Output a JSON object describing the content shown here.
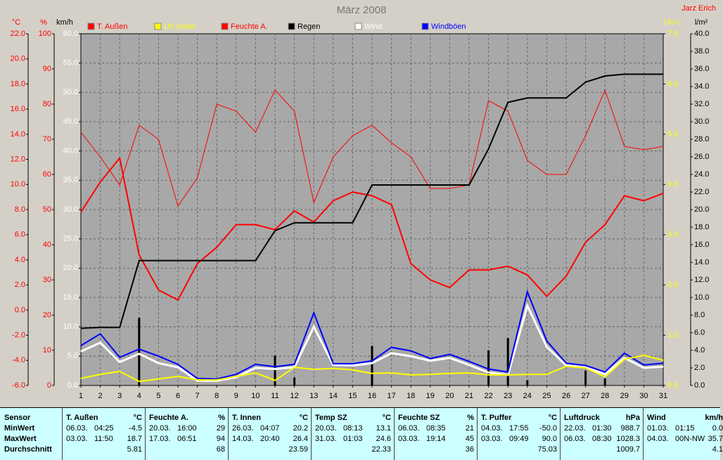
{
  "chart_data": {
    "type": "line",
    "title": "März 2008",
    "author": "Jarz Erich",
    "x": [
      1,
      2,
      3,
      4,
      5,
      6,
      7,
      8,
      9,
      10,
      11,
      12,
      13,
      14,
      15,
      16,
      17,
      18,
      19,
      20,
      21,
      22,
      23,
      24,
      25,
      26,
      27,
      28,
      29,
      30,
      31
    ],
    "xlim": [
      1,
      31
    ],
    "xticks": [
      1,
      2,
      3,
      4,
      5,
      6,
      7,
      8,
      9,
      10,
      11,
      12,
      13,
      14,
      15,
      16,
      17,
      18,
      19,
      20,
      21,
      22,
      23,
      24,
      25,
      26,
      27,
      28,
      29,
      30,
      31
    ],
    "grid": true,
    "grid_axis": 2,
    "background": "#a8a8a8",
    "axes": [
      {
        "label": "°C",
        "side": "left",
        "color": "#ff0000",
        "lim": [
          -6,
          22
        ],
        "ticks": [
          {
            "value": -6,
            "label": "-6.0"
          },
          {
            "value": -4,
            "label": "-4.0"
          },
          {
            "value": -2,
            "label": "-2.0"
          },
          {
            "value": 0,
            "label": "0.0"
          },
          {
            "value": 2,
            "label": "2.0"
          },
          {
            "value": 4,
            "label": "4.0"
          },
          {
            "value": 6,
            "label": "6.0"
          },
          {
            "value": 8,
            "label": "8.0"
          },
          {
            "value": 10,
            "label": "10.0"
          },
          {
            "value": 12,
            "label": "12.0"
          },
          {
            "value": 14,
            "label": "14.0"
          },
          {
            "value": 16,
            "label": "16.0"
          },
          {
            "value": 18,
            "label": "18.0"
          },
          {
            "value": 20,
            "label": "20.0"
          },
          {
            "value": 22,
            "label": "22.0"
          }
        ]
      },
      {
        "label": "%",
        "side": "left",
        "color": "#ff0000",
        "lim": [
          0,
          100
        ],
        "ticks": [
          0,
          10,
          20,
          30,
          40,
          50,
          60,
          70,
          80,
          90,
          100
        ]
      },
      {
        "label": "km/h",
        "side": "left",
        "color": "#ffffff",
        "lim": [
          0,
          60
        ],
        "ticks": [
          {
            "value": 0,
            "label": "0.0"
          },
          {
            "value": 5,
            "label": "5.0"
          },
          {
            "value": 10,
            "label": "10.0"
          },
          {
            "value": 15,
            "label": "15.0"
          },
          {
            "value": 20,
            "label": "20.0"
          },
          {
            "value": 25,
            "label": "25.0"
          },
          {
            "value": 30,
            "label": "30.0"
          },
          {
            "value": 35,
            "label": "35.0"
          },
          {
            "value": 40,
            "label": "40.0"
          },
          {
            "value": 45,
            "label": "45.0"
          },
          {
            "value": 50,
            "label": "50.0"
          },
          {
            "value": 55,
            "label": "55.0"
          },
          {
            "value": 60,
            "label": "60.0"
          }
        ]
      },
      {
        "label": "UV-I",
        "side": "right",
        "color": "#ffff00",
        "lim": [
          0,
          7
        ],
        "ticks": [
          {
            "value": 0,
            "label": "0.0"
          },
          {
            "value": 1,
            "label": "1.0"
          },
          {
            "value": 2,
            "label": "2.0"
          },
          {
            "value": 3,
            "label": "3.0"
          },
          {
            "value": 4,
            "label": "4.0"
          },
          {
            "value": 5,
            "label": "5.0"
          },
          {
            "value": 6,
            "label": "6.0"
          },
          {
            "value": 7,
            "label": "7.0"
          }
        ]
      },
      {
        "label": "l/m²",
        "side": "right",
        "color": "#000000",
        "lim": [
          0,
          40
        ],
        "ticks": [
          {
            "value": 0,
            "label": "0.0"
          },
          {
            "value": 2,
            "label": "2.0"
          },
          {
            "value": 4,
            "label": "4.0"
          },
          {
            "value": 6,
            "label": "6.0"
          },
          {
            "value": 8,
            "label": "8.0"
          },
          {
            "value": 10,
            "label": "10.0"
          },
          {
            "value": 12,
            "label": "12.0"
          },
          {
            "value": 14,
            "label": "14.0"
          },
          {
            "value": 16,
            "label": "16.0"
          },
          {
            "value": 18,
            "label": "18.0"
          },
          {
            "value": 20,
            "label": "20.0"
          },
          {
            "value": 22,
            "label": "22.0"
          },
          {
            "value": 24,
            "label": "24.0"
          },
          {
            "value": 26,
            "label": "26.0"
          },
          {
            "value": 28,
            "label": "28.0"
          },
          {
            "value": 30,
            "label": "30.0"
          },
          {
            "value": 32,
            "label": "32.0"
          },
          {
            "value": 34,
            "label": "34.0"
          },
          {
            "value": 36,
            "label": "36.0"
          },
          {
            "value": 38,
            "label": "38.0"
          },
          {
            "value": 40,
            "label": "40.0"
          }
        ]
      }
    ],
    "series": [
      {
        "name": "T. Außen",
        "color": "#ff0000",
        "axis": 0,
        "line_width": 2,
        "values": [
          7.8,
          10.2,
          12.1,
          4.4,
          1.6,
          0.8,
          3.7,
          5.0,
          6.8,
          6.8,
          6.4,
          7.9,
          7.0,
          8.7,
          9.4,
          9.1,
          8.4,
          3.7,
          2.4,
          1.8,
          3.2,
          3.2,
          3.5,
          2.8,
          1.1,
          2.7,
          5.4,
          6.8,
          9.1,
          8.7,
          9.3
        ]
      },
      {
        "name": "UV Index",
        "color": "#ffff00",
        "axis": 3,
        "line_width": 2,
        "values": [
          0.14,
          0.22,
          0.28,
          0.08,
          0.13,
          0.18,
          0.11,
          0.11,
          0.18,
          0.25,
          0.1,
          0.36,
          0.32,
          0.34,
          0.31,
          0.24,
          0.25,
          0.21,
          0.22,
          0.24,
          0.25,
          0.21,
          0.21,
          0.22,
          0.22,
          0.38,
          0.35,
          0.17,
          0.52,
          0.6,
          0.5
        ]
      },
      {
        "name": "Feuchte A.",
        "color": "#ff0000",
        "axis": 1,
        "line_width": 1,
        "values": [
          72,
          65,
          57,
          74,
          70,
          51,
          59,
          80,
          78,
          72,
          84,
          78,
          52,
          65,
          71,
          74,
          69,
          65,
          56,
          56,
          57,
          81,
          78,
          64,
          60,
          60,
          71,
          84,
          68,
          67,
          68
        ]
      },
      {
        "name": "Regen",
        "color": "#000000",
        "axis": 4,
        "line_width": 2,
        "values": [
          6.5,
          6.6,
          6.6,
          14.2,
          14.2,
          14.2,
          14.2,
          14.2,
          14.2,
          14.2,
          17.6,
          18.5,
          18.5,
          18.5,
          18.5,
          22.8,
          22.8,
          22.8,
          22.8,
          22.8,
          22.8,
          26.9,
          32.2,
          32.7,
          32.7,
          32.7,
          34.5,
          35.2,
          35.4,
          35.4,
          35.4
        ]
      },
      {
        "name": "Wind",
        "color": "#ffffff",
        "axis": 2,
        "line_width": 3,
        "values": [
          5.8,
          7.3,
          4.0,
          5.4,
          3.8,
          3.1,
          0.8,
          0.8,
          1.4,
          3.0,
          2.8,
          3.1,
          10.0,
          3.5,
          3.4,
          3.8,
          5.5,
          5.0,
          4.2,
          4.7,
          3.5,
          2.2,
          1.8,
          13.6,
          6.6,
          3.4,
          3.1,
          1.9,
          4.7,
          3.0,
          3.2
        ]
      },
      {
        "name": "Windböen",
        "color": "#0000ff",
        "axis": 2,
        "line_width": 2,
        "values": [
          6.8,
          8.8,
          4.8,
          6.2,
          5.0,
          3.6,
          1.2,
          1.1,
          1.9,
          3.6,
          3.2,
          3.6,
          12.4,
          3.7,
          3.7,
          4.2,
          6.5,
          5.9,
          4.6,
          5.3,
          4.1,
          2.8,
          2.3,
          16.0,
          7.6,
          3.8,
          3.4,
          2.3,
          5.5,
          3.5,
          3.8
        ]
      },
      {
        "kind": "bar",
        "color": "#000000",
        "axis": 4,
        "values": [
          0,
          0,
          0,
          7.7,
          0,
          0,
          0,
          0,
          0,
          0,
          3.4,
          0.9,
          0,
          0,
          0,
          4.5,
          0,
          0,
          0,
          0,
          0,
          4.0,
          5.4,
          0.6,
          0,
          0,
          1.7,
          0.8,
          0,
          0,
          0
        ]
      }
    ]
  },
  "table": {
    "row_labels": [
      "Sensor",
      "MinWert",
      "MaxWert",
      "Durchschnitt"
    ],
    "columns": [
      {
        "name": "T. Außen",
        "unit": "°C",
        "min": [
          "06.03.",
          "04:25",
          "-4.5"
        ],
        "max": [
          "03.03.",
          "11:50",
          "18.7"
        ],
        "avg": "5.81"
      },
      {
        "name": "Feuchte A.",
        "unit": "%",
        "min": [
          "20.03.",
          "16:00",
          "29"
        ],
        "max": [
          "17.03.",
          "06:51",
          "94"
        ],
        "avg": "68"
      },
      {
        "name": "T. Innen",
        "unit": "°C",
        "min": [
          "26.03.",
          "04:07",
          "20.2"
        ],
        "max": [
          "14.03.",
          "20:40",
          "26.4"
        ],
        "avg": "23.59"
      },
      {
        "name": "Temp SZ",
        "unit": "°C",
        "min": [
          "20.03.",
          "08:13",
          "13.1"
        ],
        "max": [
          "31.03.",
          "01:03",
          "24.6"
        ],
        "avg": "22.33"
      },
      {
        "name": "Feuchte SZ",
        "unit": "%",
        "min": [
          "06.03.",
          "08:35",
          "21"
        ],
        "max": [
          "03.03.",
          "19:14",
          "45"
        ],
        "avg": "36"
      },
      {
        "name": "T. Puffer",
        "unit": "°C",
        "min": [
          "04.03.",
          "17:55",
          "-50.0"
        ],
        "max": [
          "03.03.",
          "09:49",
          "90.0"
        ],
        "avg": "75.03"
      },
      {
        "name": "Luftdruck",
        "unit": "hPa",
        "min": [
          "22.03.",
          "01:30",
          "988.7"
        ],
        "max": [
          "06.03.",
          "08:30",
          "1028.3"
        ],
        "avg": "1009.7"
      },
      {
        "name": "Wind",
        "unit": "km/h",
        "min": [
          "01.03.",
          "01:15",
          "0.0"
        ],
        "max": [
          "04.03.",
          "00N-NW",
          "35.7"
        ],
        "avg": "4.1"
      }
    ]
  }
}
